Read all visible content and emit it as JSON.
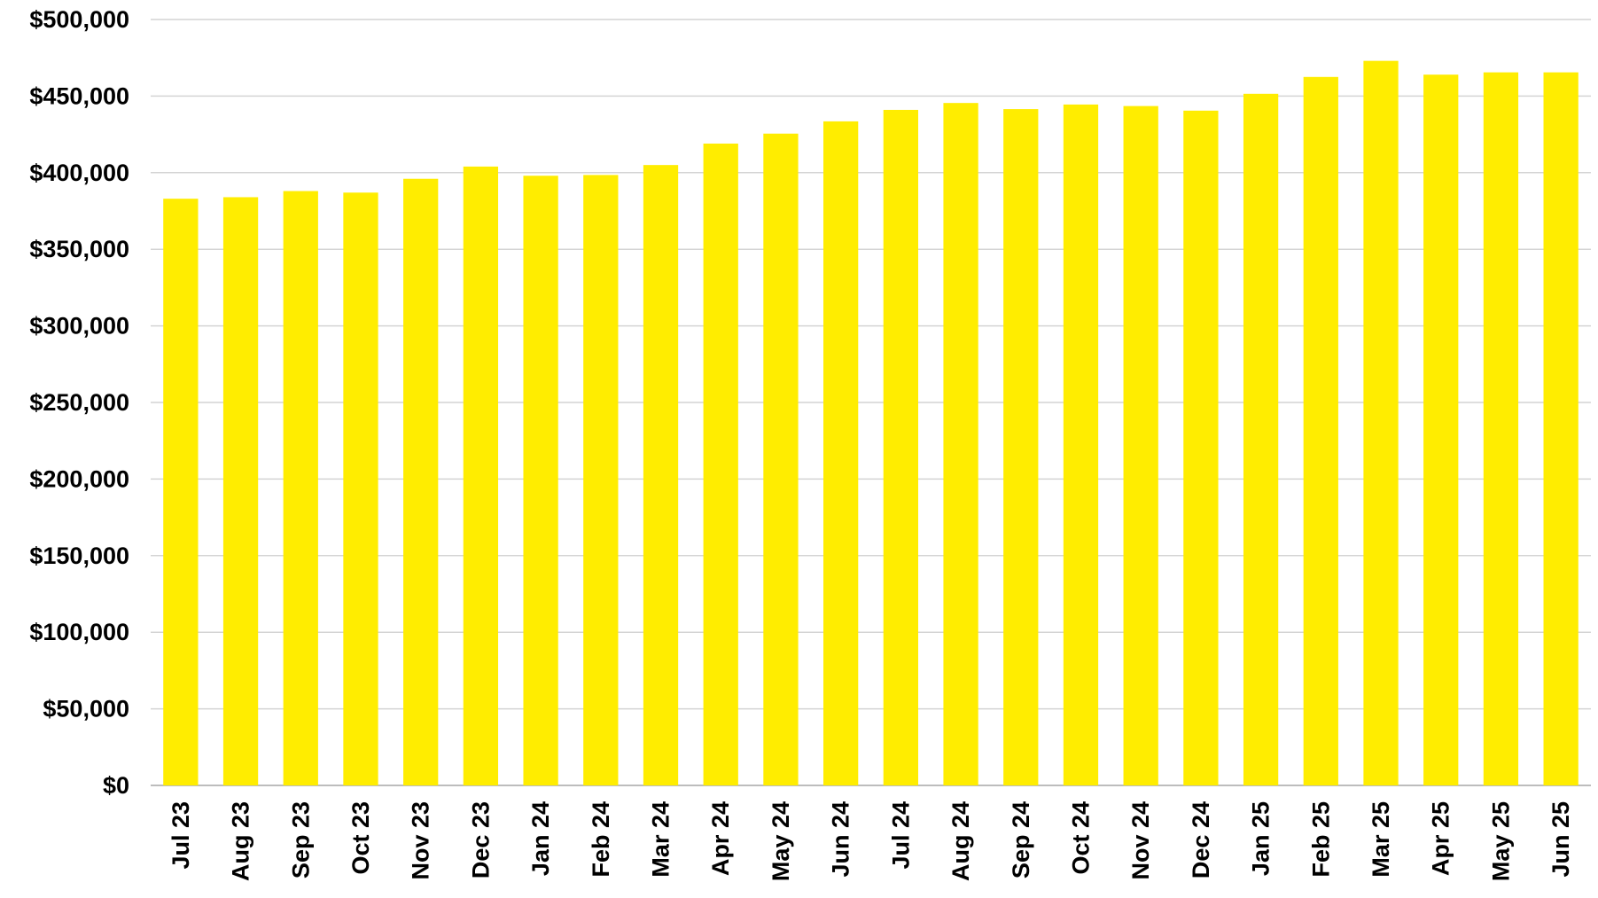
{
  "chart_data": {
    "type": "bar",
    "title": "",
    "xlabel": "",
    "ylabel": "",
    "ylim": [
      0,
      500000
    ],
    "ytick_step": 50000,
    "ytick_labels": [
      "$0",
      "$50,000",
      "$100,000",
      "$150,000",
      "$200,000",
      "$250,000",
      "$300,000",
      "$350,000",
      "$400,000",
      "$450,000",
      "$500,000"
    ],
    "grid": true,
    "legend": "none",
    "bar_color": "#FFED00",
    "categories": [
      "Jul 23",
      "Aug 23",
      "Sep 23",
      "Oct 23",
      "Nov 23",
      "Dec 23",
      "Jan 24",
      "Feb 24",
      "Mar 24",
      "Apr 24",
      "May 24",
      "Jun 24",
      "Jul 24",
      "Aug 24",
      "Sep 24",
      "Oct 24",
      "Nov 24",
      "Dec 24",
      "Jan 25",
      "Feb 25",
      "Mar 25",
      "Apr 25",
      "May 25",
      "Jun 25"
    ],
    "values": [
      383000,
      384000,
      388000,
      387000,
      396000,
      404000,
      398000,
      398500,
      405000,
      419000,
      425500,
      433500,
      441000,
      445500,
      441500,
      444500,
      443500,
      440500,
      451500,
      462500,
      473000,
      464000,
      465500,
      465500
    ]
  }
}
